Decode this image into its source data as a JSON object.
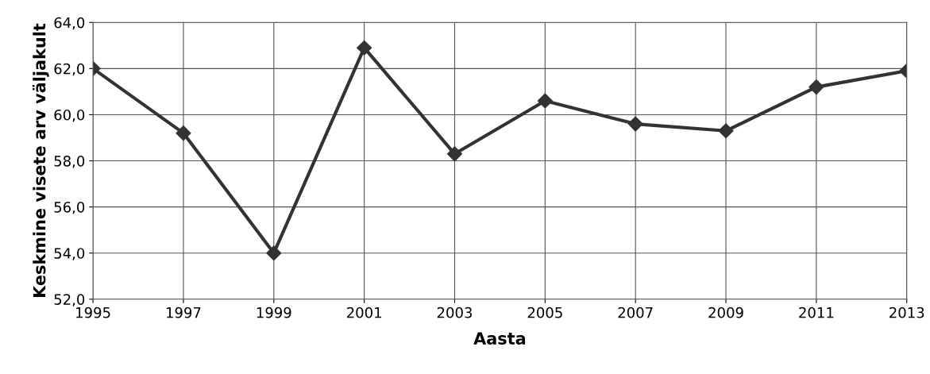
{
  "chart_data": {
    "type": "line",
    "xlabel": "Aasta",
    "ylabel": "Keskmine visete arv väljakult",
    "x": [
      1995,
      1997,
      1999,
      2001,
      2003,
      2005,
      2007,
      2009,
      2011,
      2013
    ],
    "series": [
      {
        "color": "#333333",
        "values": [
          62.0,
          59.2,
          54.0,
          62.9,
          58.3,
          60.6,
          59.6,
          59.3,
          61.2,
          61.9
        ]
      }
    ],
    "xlim": [
      1995,
      2013
    ],
    "xticks": [
      1995,
      1997,
      1999,
      2001,
      2003,
      2005,
      2007,
      2009,
      2011,
      2013
    ],
    "ylim": [
      52,
      64
    ],
    "yticks": [
      {
        "value": 52,
        "label": "52,0"
      },
      {
        "value": 54,
        "label": "54,0"
      },
      {
        "value": 56,
        "label": "56,0"
      },
      {
        "value": 58,
        "label": "58,0"
      },
      {
        "value": 60,
        "label": "60,0"
      },
      {
        "value": 62,
        "label": "62,0"
      },
      {
        "value": 64,
        "label": "64,0"
      }
    ],
    "grid": true,
    "marker": "diamond",
    "line_style": "solid"
  }
}
